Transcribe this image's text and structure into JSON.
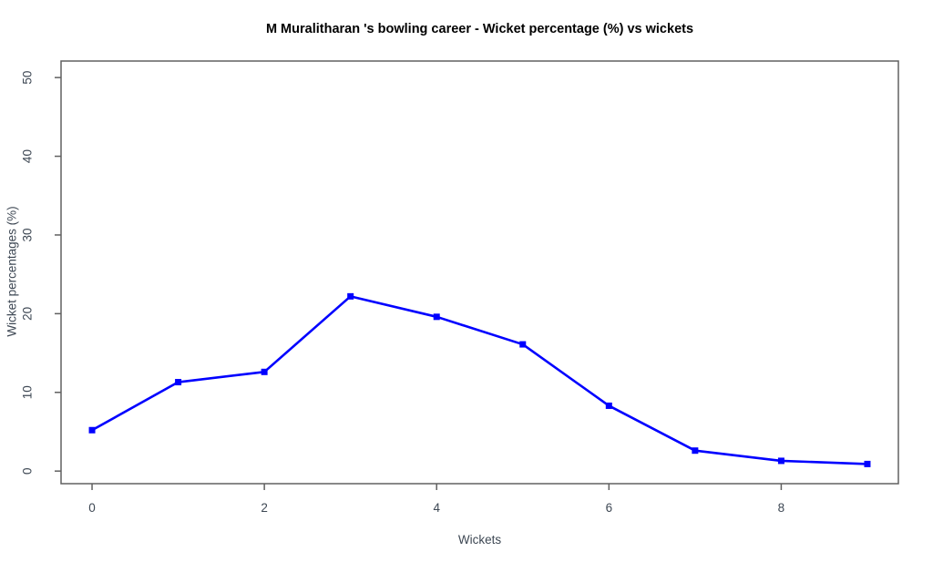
{
  "chart_data": {
    "type": "line",
    "title": "M Muralitharan 's  bowling career - Wicket percentage (%) vs wickets",
    "xlabel": "Wickets",
    "ylabel": "Wicket percentages (%)",
    "x": [
      0,
      1,
      2,
      3,
      4,
      5,
      6,
      7,
      8,
      9
    ],
    "values": [
      5.2,
      11.3,
      12.6,
      22.2,
      19.6,
      16.1,
      8.3,
      2.6,
      1.3,
      0.9
    ],
    "series_name": "Wicket percentage",
    "xlim": [
      -0.36,
      9.36
    ],
    "ylim": [
      -1.6,
      52.1
    ],
    "xticks": [
      0,
      2,
      4,
      6,
      8
    ],
    "yticks": [
      0,
      10,
      20,
      30,
      40,
      50
    ],
    "grid": false,
    "legend": "none",
    "marker": "square",
    "line_color": "#0000ff",
    "axis_color": "#606060",
    "tick_text_color": "#3e4854",
    "title_color": "#000000",
    "background_color": "#ffffff"
  }
}
